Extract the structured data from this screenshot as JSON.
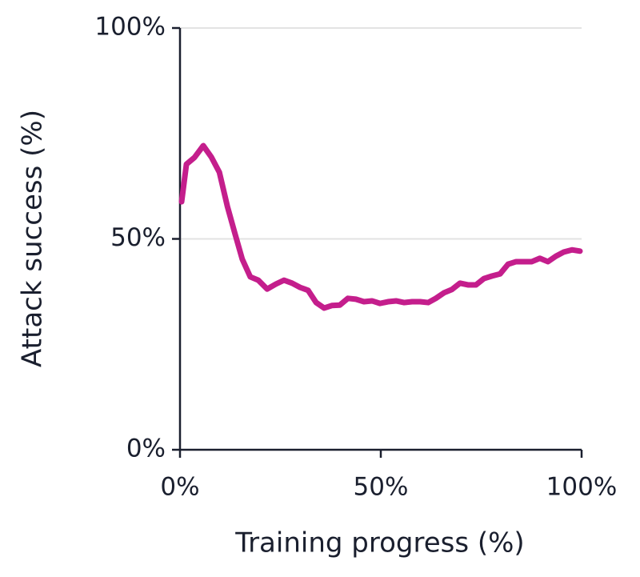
{
  "chart_data": {
    "type": "line",
    "x_label": "Training progress (%)",
    "y_label": "Attack success (%)",
    "xlim": [
      0,
      100
    ],
    "ylim": [
      0,
      100
    ],
    "xticks": [
      {
        "value": 0,
        "label": "0%"
      },
      {
        "value": 50,
        "label": "50%"
      },
      {
        "value": 100,
        "label": "100%"
      }
    ],
    "yticks": [
      {
        "value": 0,
        "label": "0%"
      },
      {
        "value": 50,
        "label": "50%"
      },
      {
        "value": 100,
        "label": "100%"
      }
    ],
    "grid": true,
    "x": [
      0.4,
      1.6,
      3.6,
      5.8,
      7.8,
      9.8,
      11.8,
      13.7,
      15.5,
      17.5,
      19.5,
      21.7,
      23.9,
      25.9,
      27.9,
      29.9,
      31.9,
      33.9,
      35.9,
      37.8,
      39.8,
      41.8,
      43.8,
      45.8,
      47.8,
      49.8,
      51.8,
      53.8,
      55.8,
      57.8,
      59.8,
      61.8,
      63.7,
      65.7,
      67.7,
      69.7,
      71.7,
      73.7,
      75.7,
      77.7,
      79.7,
      81.7,
      83.7,
      85.7,
      87.6,
      89.6,
      91.6,
      93.6,
      95.6,
      97.6,
      99.6
    ],
    "series": [
      {
        "color": "#c41e8c",
        "values": [
          58.8,
          67.7,
          69.3,
          72.1,
          69.4,
          65.8,
          57.7,
          51.2,
          45.2,
          41.0,
          40.2,
          38.1,
          39.3,
          40.2,
          39.5,
          38.5,
          37.8,
          34.9,
          33.6,
          34.2,
          34.3,
          35.9,
          35.7,
          35.1,
          35.3,
          34.7,
          35.1,
          35.3,
          34.9,
          35.1,
          35.1,
          34.9,
          35.9,
          37.2,
          38.0,
          39.5,
          39.1,
          39.1,
          40.6,
          41.2,
          41.7,
          44.0,
          44.6,
          44.6,
          44.6,
          45.4,
          44.6,
          45.9,
          46.9,
          47.4,
          47.1
        ]
      }
    ]
  }
}
